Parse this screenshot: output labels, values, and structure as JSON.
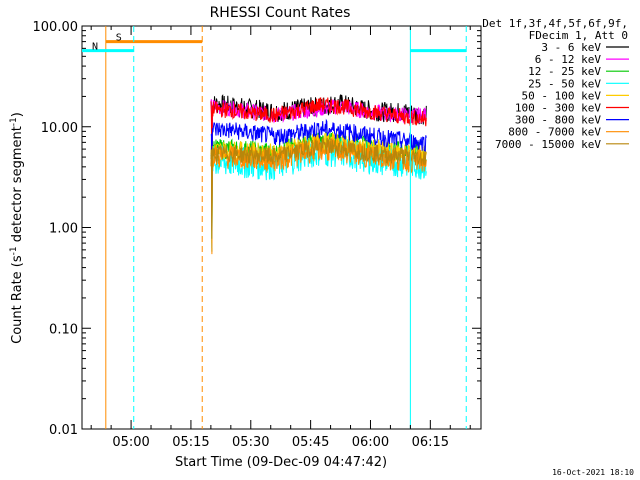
{
  "chart_data": {
    "type": "line",
    "title": "RHESSI Count Rates",
    "xlabel": "Start Time (09-Dec-09 04:47:42)",
    "ylabel": "Count Rate (s^-1 detector segment^-1)",
    "yscale": "log",
    "ylim": [
      0.01,
      100
    ],
    "xlim": [
      "04:47:42",
      "06:27:42"
    ],
    "x_ticks": [
      "05:00",
      "05:15",
      "05:30",
      "05:45",
      "06:00",
      "06:15"
    ],
    "y_ticks": [
      "0.01",
      "0.10",
      "1.00",
      "10.00",
      "100.00"
    ],
    "legend_header": [
      "Det 1f,3f,4f,5f,6f,9f,",
      "FDecim 1, Att 0"
    ],
    "legend_placement": "top-right outside",
    "series": [
      {
        "name": "3 - 6 keV",
        "color": "#000000",
        "start": "05:20:00",
        "end": "06:14:00",
        "level": [
          17,
          16,
          15,
          14,
          15,
          16,
          17,
          15,
          14,
          14,
          13
        ],
        "noise": 0.1
      },
      {
        "name": "6 - 12 keV",
        "color": "#ff00ff",
        "start": "05:20:00",
        "end": "06:14:00",
        "level": [
          16,
          15,
          14,
          13,
          14,
          15,
          16,
          14.5,
          13.5,
          13,
          13
        ],
        "noise": 0.08
      },
      {
        "name": "12 - 25 keV",
        "color": "#00c800",
        "start": "05:20:00",
        "end": "06:14:00",
        "level": [
          6,
          6,
          5.8,
          5.5,
          6.5,
          7.2,
          7.0,
          6.5,
          6,
          5.8,
          5.5
        ],
        "noise": 0.1
      },
      {
        "name": "25 - 50 keV",
        "color": "#00ffff",
        "start": "05:20:00",
        "end": "06:14:00",
        "level": [
          4.5,
          4.5,
          4.3,
          4.2,
          5.0,
          5.8,
          5.6,
          5.0,
          4.6,
          4.5,
          4.2
        ],
        "noise": 0.16
      },
      {
        "name": "50 - 100 keV",
        "color": "#ffcc00",
        "start": "05:20:00",
        "end": "06:14:00",
        "level": [
          5.8,
          5.8,
          5.6,
          5.4,
          6.2,
          7.0,
          6.8,
          6.2,
          5.8,
          5.5,
          5.3
        ],
        "noise": 0.1
      },
      {
        "name": "100 - 300 keV",
        "color": "#ff0000",
        "start": "05:20:00",
        "end": "06:14:00",
        "level": [
          15,
          14.5,
          13.5,
          13,
          14.5,
          16.5,
          16,
          14.5,
          13.5,
          12.5,
          12
        ],
        "noise": 0.08
      },
      {
        "name": "300 - 800 keV",
        "color": "#0000ff",
        "start": "05:20:00",
        "end": "06:14:00",
        "level": [
          9.5,
          9.2,
          8.6,
          8.0,
          8.6,
          9.6,
          9.2,
          8.4,
          7.8,
          7.2,
          7.0
        ],
        "noise": 0.09
      },
      {
        "name": "800 - 7000 keV",
        "color": "#ff8c00",
        "start": "05:20:00",
        "end": "06:14:00",
        "level": [
          5.0,
          5.0,
          4.8,
          4.7,
          5.3,
          6.0,
          5.8,
          5.3,
          4.9,
          4.7,
          4.5
        ],
        "noise": 0.12
      },
      {
        "name": "7000 - 15000 keV",
        "color": "#b8860b",
        "start": "05:20:00",
        "end": "06:14:00",
        "level": [
          5.4,
          5.4,
          5.2,
          5.0,
          5.7,
          6.5,
          6.2,
          5.7,
          5.3,
          5.1,
          4.9
        ],
        "noise": 0.09
      }
    ],
    "annotations": [
      {
        "label": "S",
        "meaning": "SAA",
        "color": "#ff8c00",
        "start": "04:53:40",
        "end": "05:17:50",
        "level": 70
      },
      {
        "label": "N",
        "meaning": "Night",
        "color": "#00ffff",
        "start": "04:47:42",
        "end": "05:00:40",
        "level": 57
      },
      {
        "label": "",
        "meaning": "Night",
        "color": "#00ffff",
        "start": "06:10:00",
        "end": "06:24:00",
        "level": 57
      }
    ],
    "grid": false
  },
  "footer": {
    "timestamp": "16-Oct-2021 18:10"
  }
}
